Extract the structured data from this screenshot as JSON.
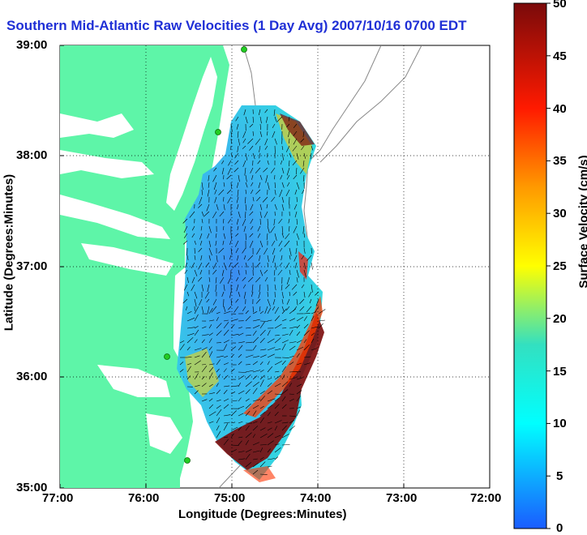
{
  "title": "Southern Mid-Atlantic Raw Velocities (1 Day Avg) 2007/10/16 0700 EDT",
  "axes": {
    "xlabel": "Longitude (Degrees:Minutes)",
    "ylabel": "Latitude (Degrees:Minutes)",
    "xticks": [
      "77:00",
      "76:00",
      "75:00",
      "74:00",
      "73:00",
      "72:00"
    ],
    "yticks": [
      "39:00",
      "38:00",
      "37:00",
      "36:00",
      "35:00"
    ]
  },
  "colorbar": {
    "label": "Surface Velocity (cm/s)",
    "ticks": [
      "50",
      "45",
      "40",
      "35",
      "30",
      "25",
      "20",
      "15",
      "10",
      "5",
      "0"
    ],
    "min": 0,
    "max": 50
  },
  "colors": {
    "land": "#5ef5a8",
    "title": "#1f2fd6",
    "stations": "#22cc22"
  }
}
